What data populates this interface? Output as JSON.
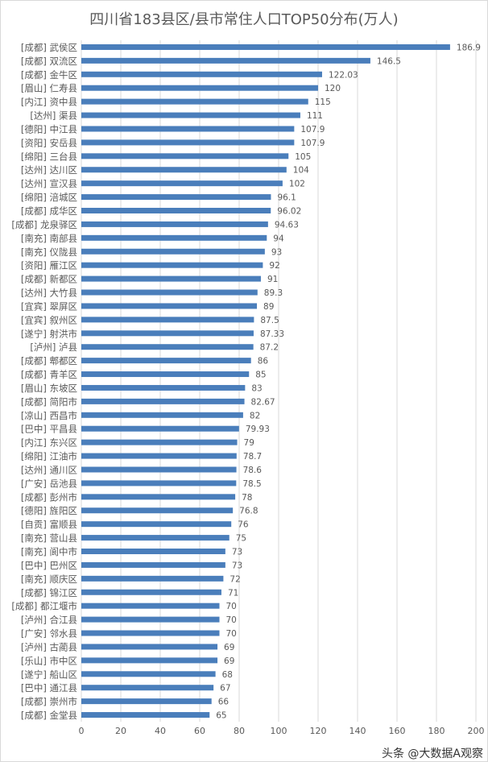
{
  "chart_data": {
    "type": "bar",
    "orientation": "horizontal",
    "title": "四川省183县区/县市常住人口TOP50分布(万人)",
    "xlabel": "",
    "ylabel": "",
    "xlim": [
      0,
      200
    ],
    "xticks": [
      0,
      20,
      40,
      60,
      80,
      100,
      120,
      140,
      160,
      180,
      200
    ],
    "grid": true,
    "bar_color": "#4a7ebb",
    "categories": [
      "[成都] 武侯区",
      "[成都] 双流区",
      "[成都] 金牛区",
      "[眉山] 仁寿县",
      "[内江] 资中县",
      "[达州] 渠县",
      "[德阳] 中江县",
      "[资阳] 安岳县",
      "[绵阳] 三台县",
      "[达州] 达川区",
      "[达州] 宣汉县",
      "[绵阳] 涪城区",
      "[成都] 成华区",
      "[成都] 龙泉驿区",
      "[南充] 南部县",
      "[南充] 仪陇县",
      "[资阳] 雁江区",
      "[成都] 新都区",
      "[达州] 大竹县",
      "[宜宾] 翠屏区",
      "[宜宾] 叙州区",
      "[遂宁] 射洪市",
      "[泸州] 泸县",
      "[成都] 郫都区",
      "[成都] 青羊区",
      "[眉山] 东坡区",
      "[成都] 简阳市",
      "[凉山] 西昌市",
      "[巴中] 平昌县",
      "[内江] 东兴区",
      "[绵阳] 江油市",
      "[达州] 通川区",
      "[广安] 岳池县",
      "[成都] 彭州市",
      "[德阳] 旌阳区",
      "[自贡] 富顺县",
      "[南充] 营山县",
      "[南充] 阆中市",
      "[巴中] 巴州区",
      "[南充] 顺庆区",
      "[成都] 锦江区",
      "[成都] 都江堰市",
      "[泸州] 合江县",
      "[广安] 邻水县",
      "[泸州] 古蔺县",
      "[乐山] 市中区",
      "[遂宁] 船山区",
      "[巴中] 通江县",
      "[成都] 崇州市",
      "[成都] 金堂县"
    ],
    "values": [
      186.9,
      146.5,
      122.03,
      120,
      115,
      111,
      107.9,
      107.9,
      105,
      104,
      102,
      96.1,
      96.02,
      94.63,
      94,
      93,
      92,
      91,
      89.3,
      89,
      87.5,
      87.33,
      87.2,
      86,
      85,
      83,
      82.67,
      82,
      79.93,
      79,
      78.7,
      78.6,
      78.5,
      78,
      76.8,
      76,
      75,
      73,
      73,
      72,
      71,
      70,
      70,
      70,
      69,
      69,
      68,
      67,
      66,
      65
    ]
  },
  "watermark": "头条 @大数据A观察"
}
